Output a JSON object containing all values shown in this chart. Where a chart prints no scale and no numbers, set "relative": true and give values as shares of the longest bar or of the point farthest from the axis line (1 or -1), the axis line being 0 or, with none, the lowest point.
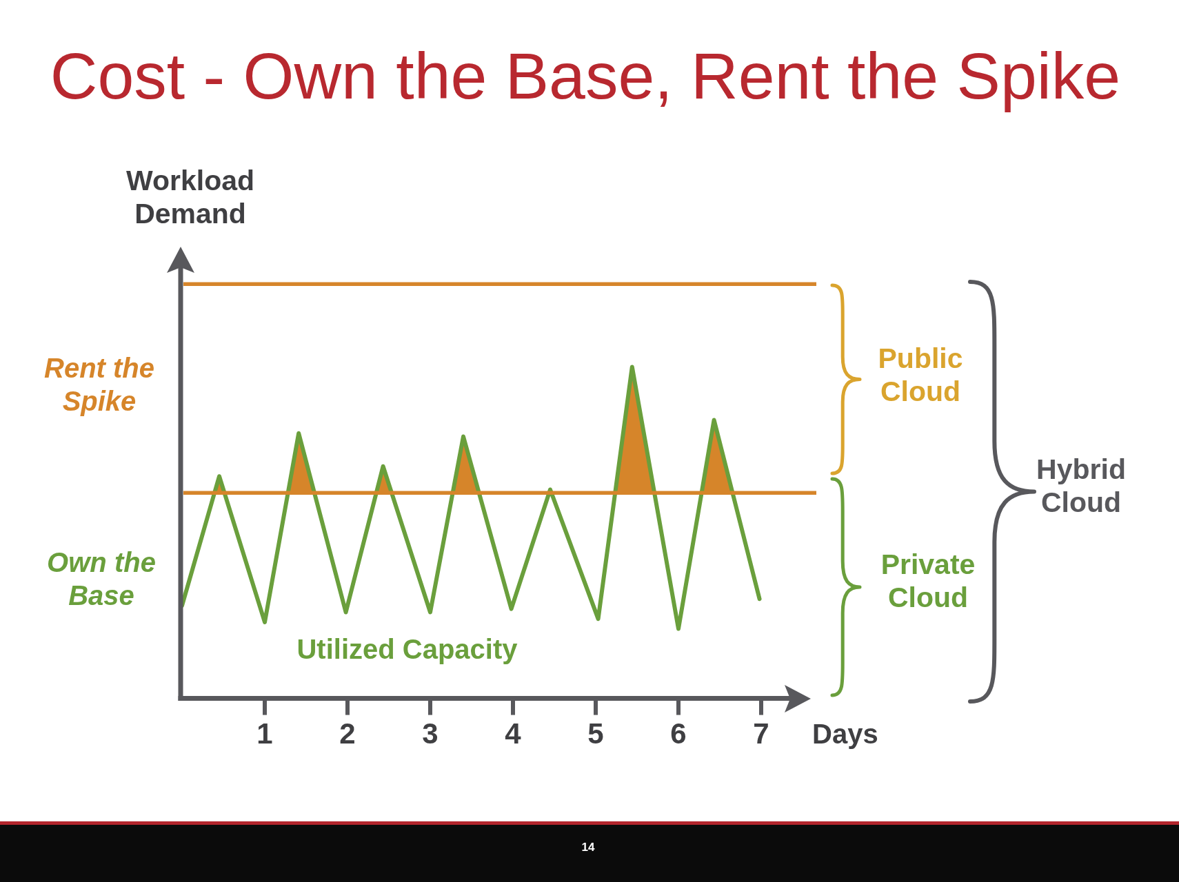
{
  "chart_data": {
    "type": "line",
    "title": "Cost - Own the Base, Rent the Spike",
    "xlabel": "Days",
    "ylabel": "Workload Demand",
    "relative": true,
    "xlim": [
      0,
      7.6
    ],
    "xticks": [
      1,
      2,
      3,
      4,
      5,
      6,
      7
    ],
    "series": [
      {
        "name": "Utilized Capacity",
        "color": "#6a9f3c",
        "x": [
          0,
          0.45,
          1,
          1.41,
          1.98,
          2.43,
          3,
          3.4,
          3.98,
          4.45,
          5.03,
          5.44,
          6,
          6.43,
          6.98
        ],
        "values": [
          0.28,
          0.67,
          0.23,
          0.8,
          0.26,
          0.7,
          0.26,
          0.79,
          0.27,
          0.63,
          0.24,
          1,
          0.21,
          0.84,
          0.3
        ]
      }
    ],
    "ref_lines": [
      {
        "axis": "y",
        "value": 1.25,
        "color": "#d6852a"
      },
      {
        "axis": "y",
        "value": 0.62,
        "color": "#d6852a"
      }
    ],
    "annotations": [
      "Rent the Spike",
      "Own the Base",
      "Public Cloud",
      "Private Cloud",
      "Hybrid Cloud",
      "14"
    ]
  }
}
